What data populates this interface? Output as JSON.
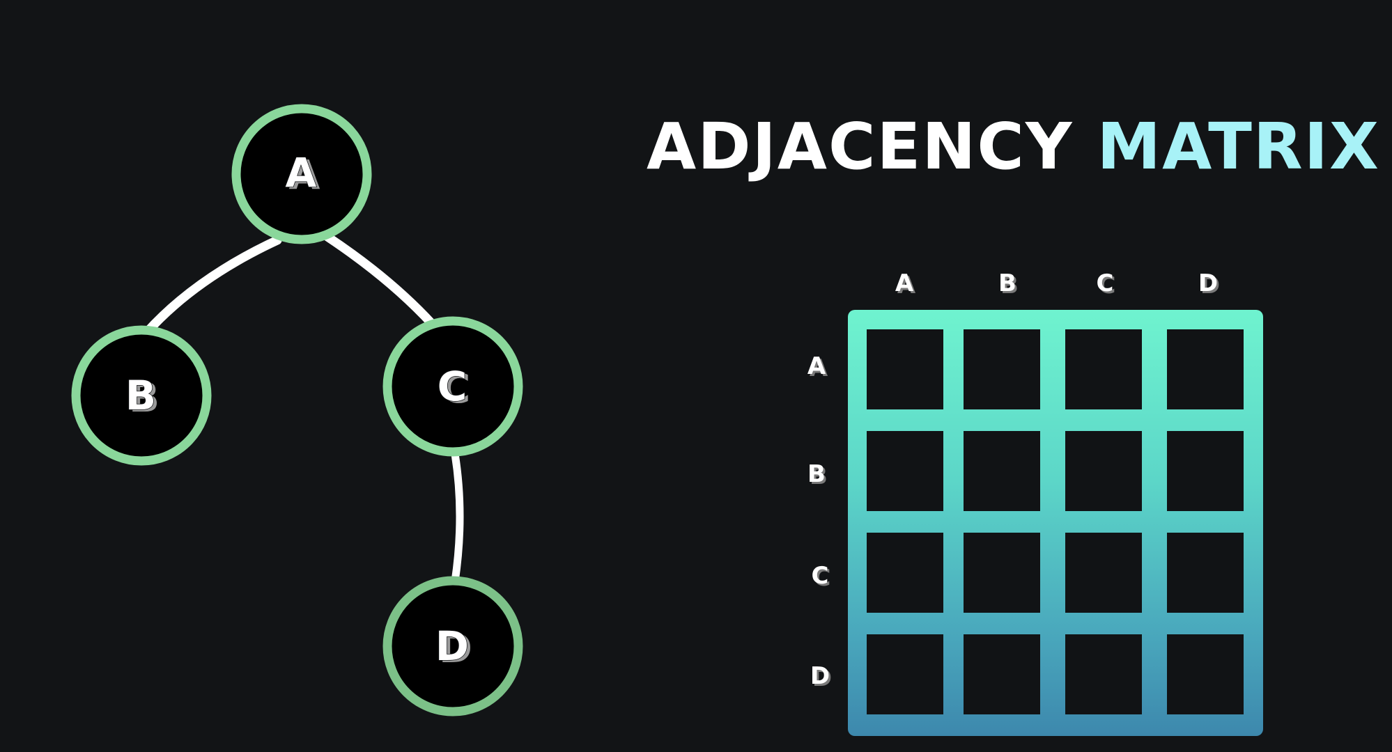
{
  "title": {
    "part1": "ADJACENCY",
    "part2": "MATRIX",
    "part2_color": "#a8f2f7"
  },
  "graph": {
    "node_stroke_color": "#8ad79b",
    "node_fill_color": "#000000",
    "edge_color": "#ffffff",
    "nodes": [
      {
        "id": "A",
        "label": "A"
      },
      {
        "id": "B",
        "label": "B"
      },
      {
        "id": "C",
        "label": "C"
      },
      {
        "id": "D",
        "label": "D"
      }
    ],
    "edges": [
      {
        "from": "A",
        "to": "B"
      },
      {
        "from": "A",
        "to": "C"
      },
      {
        "from": "C",
        "to": "D"
      }
    ]
  },
  "matrix": {
    "column_headers": [
      "A",
      "B",
      "C",
      "D"
    ],
    "row_headers": [
      "A",
      "B",
      "C",
      "D"
    ],
    "cells": [
      [
        "",
        "",
        "",
        ""
      ],
      [
        "",
        "",
        "",
        ""
      ],
      [
        "",
        "",
        "",
        ""
      ],
      [
        "",
        "",
        "",
        ""
      ]
    ],
    "gradient_top_color": "#6ff3cf",
    "gradient_bottom_color": "#3d88ad"
  }
}
